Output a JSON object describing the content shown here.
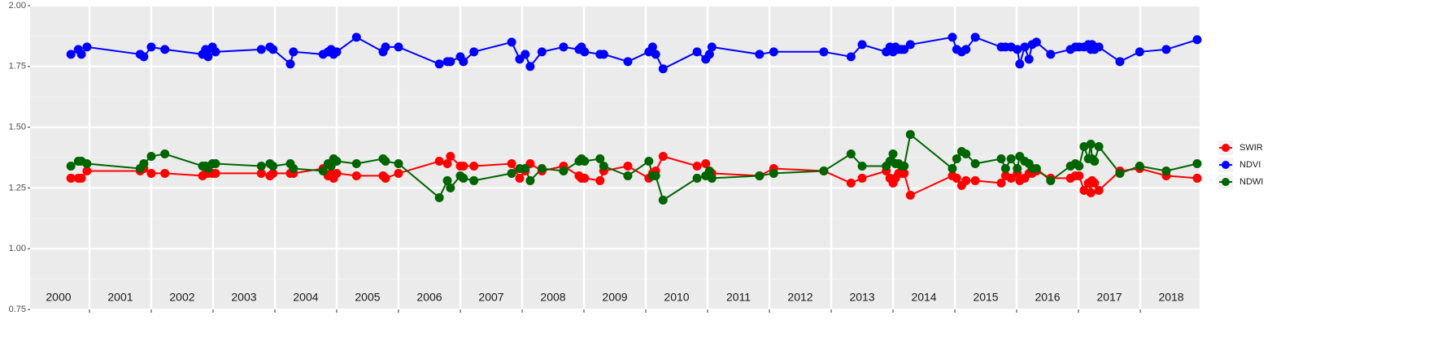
{
  "chart_data": {
    "type": "line",
    "x": [
      2000.7,
      2000.82,
      2000.87,
      2000.96,
      2001.82,
      2001.88,
      2002.0,
      2002.22,
      2002.83,
      2002.88,
      2002.92,
      2002.99,
      2003.04,
      2003.78,
      2003.92,
      2003.97,
      2004.25,
      2004.3,
      2004.78,
      2004.86,
      2004.91,
      2004.95,
      2005.0,
      2005.32,
      2005.75,
      2005.79,
      2006.0,
      2006.66,
      2006.79,
      2006.84,
      2007.0,
      2007.05,
      2007.22,
      2007.83,
      2007.96,
      2008.05,
      2008.13,
      2008.32,
      2008.67,
      2008.92,
      2008.96,
      2009.01,
      2009.26,
      2009.32,
      2009.71,
      2010.05,
      2010.11,
      2010.16,
      2010.28,
      2010.83,
      2010.97,
      2011.03,
      2011.07,
      2011.84,
      2012.07,
      2012.88,
      2013.32,
      2013.5,
      2013.89,
      2013.95,
      2014.0,
      2014.04,
      2014.09,
      2014.14,
      2014.18,
      2014.28,
      2014.96,
      2015.03,
      2015.11,
      2015.18,
      2015.33,
      2015.75,
      2015.82,
      2015.91,
      2016.01,
      2016.05,
      2016.13,
      2016.2,
      2016.25,
      2016.32,
      2016.55,
      2016.87,
      2016.95,
      2017.01,
      2017.09,
      2017.16,
      2017.2,
      2017.22,
      2017.26,
      2017.33,
      2017.67,
      2017.99,
      2018.42,
      2018.92
    ],
    "series": [
      {
        "name": "SWIR",
        "color": "#ff0000",
        "values": [
          1.29,
          1.29,
          1.29,
          1.32,
          1.32,
          1.33,
          1.31,
          1.31,
          1.3,
          1.31,
          1.31,
          1.31,
          1.31,
          1.31,
          1.3,
          1.31,
          1.31,
          1.31,
          1.33,
          1.3,
          1.31,
          1.29,
          1.31,
          1.3,
          1.3,
          1.29,
          1.31,
          1.36,
          1.35,
          1.38,
          1.34,
          1.34,
          1.34,
          1.35,
          1.29,
          1.32,
          1.35,
          1.32,
          1.34,
          1.3,
          1.29,
          1.29,
          1.28,
          1.32,
          1.34,
          1.29,
          1.31,
          1.32,
          1.38,
          1.34,
          1.35,
          1.31,
          1.31,
          1.3,
          1.33,
          1.32,
          1.27,
          1.29,
          1.32,
          1.29,
          1.27,
          1.29,
          1.31,
          1.31,
          1.31,
          1.22,
          1.3,
          1.29,
          1.26,
          1.28,
          1.28,
          1.27,
          1.3,
          1.29,
          1.31,
          1.28,
          1.29,
          1.31,
          1.31,
          1.32,
          1.29,
          1.29,
          1.3,
          1.3,
          1.24,
          1.27,
          1.23,
          1.28,
          1.27,
          1.24,
          1.32,
          1.33,
          1.3,
          1.29
        ]
      },
      {
        "name": "NDVI",
        "color": "#0000ff",
        "values": [
          1.8,
          1.82,
          1.8,
          1.83,
          1.8,
          1.79,
          1.83,
          1.82,
          1.8,
          1.82,
          1.79,
          1.83,
          1.81,
          1.82,
          1.83,
          1.82,
          1.76,
          1.81,
          1.8,
          1.81,
          1.82,
          1.8,
          1.81,
          1.87,
          1.81,
          1.83,
          1.83,
          1.76,
          1.77,
          1.77,
          1.79,
          1.77,
          1.81,
          1.85,
          1.78,
          1.8,
          1.75,
          1.81,
          1.83,
          1.82,
          1.83,
          1.81,
          1.8,
          1.8,
          1.77,
          1.81,
          1.83,
          1.8,
          1.74,
          1.81,
          1.78,
          1.8,
          1.83,
          1.8,
          1.81,
          1.81,
          1.79,
          1.84,
          1.81,
          1.83,
          1.81,
          1.83,
          1.82,
          1.82,
          1.82,
          1.84,
          1.87,
          1.82,
          1.81,
          1.82,
          1.87,
          1.83,
          1.83,
          1.83,
          1.82,
          1.76,
          1.83,
          1.78,
          1.84,
          1.85,
          1.8,
          1.82,
          1.83,
          1.83,
          1.83,
          1.84,
          1.82,
          1.84,
          1.82,
          1.83,
          1.77,
          1.81,
          1.82,
          1.86
        ]
      },
      {
        "name": "NDWI",
        "color": "#006400",
        "values": [
          1.34,
          1.36,
          1.36,
          1.35,
          1.33,
          1.35,
          1.38,
          1.39,
          1.34,
          1.34,
          1.33,
          1.35,
          1.35,
          1.34,
          1.35,
          1.34,
          1.35,
          1.33,
          1.32,
          1.35,
          1.34,
          1.37,
          1.36,
          1.35,
          1.37,
          1.36,
          1.35,
          1.21,
          1.28,
          1.25,
          1.3,
          1.29,
          1.28,
          1.31,
          1.33,
          1.33,
          1.28,
          1.33,
          1.32,
          1.36,
          1.37,
          1.36,
          1.37,
          1.34,
          1.3,
          1.36,
          1.3,
          1.3,
          1.2,
          1.29,
          1.3,
          1.32,
          1.29,
          1.3,
          1.31,
          1.32,
          1.39,
          1.34,
          1.34,
          1.36,
          1.39,
          1.35,
          1.35,
          1.34,
          1.34,
          1.47,
          1.33,
          1.37,
          1.4,
          1.39,
          1.35,
          1.37,
          1.33,
          1.37,
          1.33,
          1.38,
          1.36,
          1.35,
          1.33,
          1.33,
          1.28,
          1.34,
          1.35,
          1.34,
          1.42,
          1.37,
          1.43,
          1.37,
          1.36,
          1.42,
          1.31,
          1.34,
          1.32,
          1.35
        ]
      }
    ],
    "xlim": [
      2000.04,
      2018.96
    ],
    "xgrid": [
      2001,
      2002,
      2003,
      2004,
      2005,
      2006,
      2007,
      2008,
      2009,
      2010,
      2011,
      2012,
      2013,
      2014,
      2015,
      2016,
      2017,
      2018
    ],
    "xticks": [
      {
        "value": 2000.5,
        "label": "2000"
      },
      {
        "value": 2001.5,
        "label": "2001"
      },
      {
        "value": 2002.5,
        "label": "2002"
      },
      {
        "value": 2003.5,
        "label": "2003"
      },
      {
        "value": 2004.5,
        "label": "2004"
      },
      {
        "value": 2005.5,
        "label": "2005"
      },
      {
        "value": 2006.5,
        "label": "2006"
      },
      {
        "value": 2007.5,
        "label": "2007"
      },
      {
        "value": 2008.5,
        "label": "2008"
      },
      {
        "value": 2009.5,
        "label": "2009"
      },
      {
        "value": 2010.5,
        "label": "2010"
      },
      {
        "value": 2011.5,
        "label": "2011"
      },
      {
        "value": 2012.5,
        "label": "2012"
      },
      {
        "value": 2013.5,
        "label": "2013"
      },
      {
        "value": 2014.5,
        "label": "2014"
      },
      {
        "value": 2015.5,
        "label": "2015"
      },
      {
        "value": 2016.5,
        "label": "2016"
      },
      {
        "value": 2017.5,
        "label": "2017"
      },
      {
        "value": 2018.5,
        "label": "2018"
      }
    ],
    "ylim": [
      0.75,
      2.0
    ],
    "yticks": [
      0.75,
      {
        "value": 1,
        "label": "1.00"
      },
      1.25,
      {
        "value": 1.5,
        "label": "1.50"
      },
      1.75,
      {
        "value": 2,
        "label": "2.00"
      }
    ],
    "grid": true,
    "legend": "right"
  }
}
